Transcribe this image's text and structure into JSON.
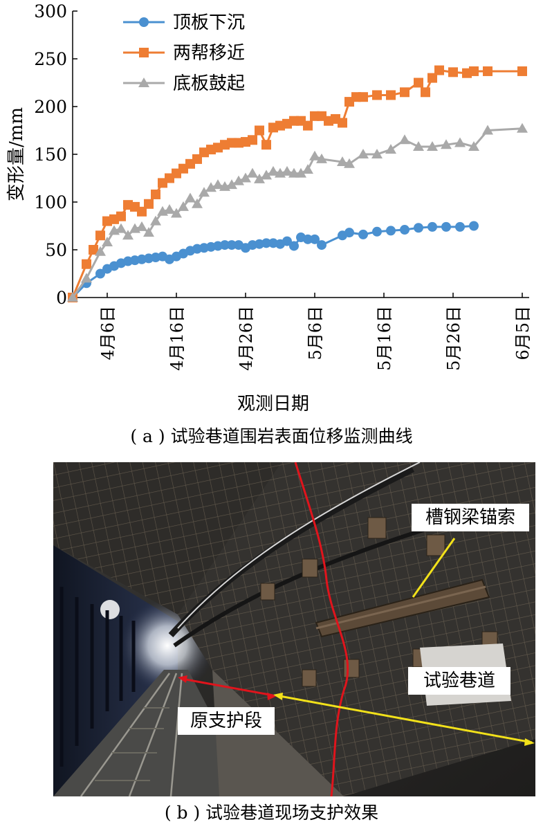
{
  "figure": {
    "caption_a": "( a ) 试验巷道围岩表面位移监测曲线",
    "caption_b": "( b ) 试验巷道现场支护效果"
  },
  "chart_data": {
    "type": "line",
    "ylabel": "变形量/mm",
    "xlabel": "观测日期",
    "ylim": [
      0,
      300
    ],
    "yticks": [
      0,
      50,
      100,
      150,
      200,
      250,
      300
    ],
    "xticks": [
      {
        "day": 5,
        "label": "4月6日"
      },
      {
        "day": 15,
        "label": "4月16日"
      },
      {
        "day": 25,
        "label": "4月26日"
      },
      {
        "day": 35,
        "label": "5月6日"
      },
      {
        "day": 45,
        "label": "5月16日"
      },
      {
        "day": 55,
        "label": "5月26日"
      },
      {
        "day": 65,
        "label": "6月5日"
      }
    ],
    "xlim": [
      0,
      66
    ],
    "grid": false,
    "legend_position": "top-left",
    "series": [
      {
        "name": "顶板下沉",
        "color": "#4a90d0",
        "marker": "circle",
        "x": [
          0,
          2,
          4,
          5,
          6,
          7,
          8,
          9,
          10,
          11,
          12,
          13,
          14,
          15,
          16,
          17,
          18,
          19,
          20,
          21,
          22,
          23,
          24,
          25,
          26,
          27,
          28,
          29,
          30,
          31,
          32,
          33,
          34,
          35,
          36,
          39,
          40,
          42,
          44,
          46,
          48,
          50,
          52,
          54,
          56,
          58
        ],
        "y": [
          0,
          15,
          25,
          30,
          33,
          36,
          38,
          39,
          40,
          41,
          42,
          43,
          40,
          43,
          46,
          49,
          51,
          52,
          53,
          54,
          55,
          55,
          55,
          52,
          55,
          56,
          57,
          57,
          56,
          59,
          54,
          63,
          61,
          61,
          55,
          65,
          68,
          66,
          69,
          70,
          71,
          73,
          74,
          74,
          74,
          75
        ]
      },
      {
        "name": "两帮移近",
        "color": "#ee7d33",
        "marker": "square",
        "x": [
          0,
          2,
          3,
          4,
          5,
          6,
          7,
          8,
          9,
          10,
          11,
          12,
          13,
          14,
          15,
          16,
          17,
          18,
          19,
          20,
          21,
          22,
          23,
          24,
          25,
          26,
          27,
          28,
          29,
          30,
          31,
          32,
          33,
          34,
          35,
          36,
          37,
          38,
          39,
          40,
          41,
          42,
          44,
          46,
          48,
          50,
          51,
          52,
          53,
          55,
          57,
          58,
          60,
          65
        ],
        "y": [
          0,
          35,
          50,
          65,
          80,
          82,
          85,
          97,
          95,
          90,
          98,
          108,
          120,
          125,
          130,
          135,
          140,
          145,
          152,
          155,
          157,
          160,
          162,
          162,
          163,
          165,
          175,
          160,
          178,
          180,
          182,
          185,
          185,
          180,
          190,
          190,
          185,
          187,
          183,
          205,
          210,
          210,
          212,
          212,
          215,
          225,
          215,
          230,
          238,
          236,
          235,
          237,
          237,
          237
        ]
      },
      {
        "name": "底板鼓起",
        "color": "#a9a9a9",
        "marker": "triangle",
        "x": [
          0,
          2,
          4,
          5,
          6,
          7,
          8,
          9,
          10,
          11,
          12,
          13,
          14,
          15,
          16,
          17,
          18,
          19,
          20,
          21,
          22,
          23,
          24,
          25,
          26,
          27,
          28,
          29,
          30,
          31,
          32,
          33,
          34,
          35,
          36,
          39,
          40,
          42,
          44,
          46,
          48,
          50,
          52,
          54,
          56,
          58,
          60,
          65
        ],
        "y": [
          0,
          20,
          48,
          58,
          70,
          72,
          65,
          72,
          74,
          68,
          80,
          90,
          92,
          88,
          95,
          104,
          98,
          110,
          115,
          118,
          116,
          118,
          122,
          125,
          130,
          124,
          128,
          132,
          130,
          132,
          130,
          130,
          134,
          148,
          145,
          142,
          140,
          150,
          150,
          155,
          165,
          158,
          158,
          160,
          162,
          158,
          175,
          177
        ]
      }
    ]
  },
  "photo": {
    "annotations": [
      {
        "label": "槽钢梁锚索"
      },
      {
        "label": "试验巷道"
      },
      {
        "label": "原支护段"
      }
    ]
  }
}
